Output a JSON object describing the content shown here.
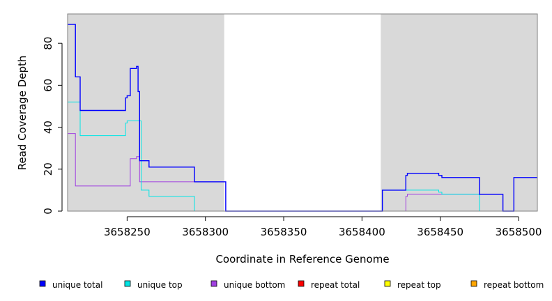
{
  "chart_data": {
    "type": "line",
    "step": true,
    "title": "",
    "xlabel": "Coordinate in Reference Genome",
    "ylabel": "Read Coverage Depth",
    "xlim": [
      3658212,
      3658512
    ],
    "ylim": [
      0,
      94
    ],
    "x_ticks": [
      3658250,
      3658300,
      3658350,
      3658400,
      3658450,
      3658500
    ],
    "x_tick_labels": [
      "3658250",
      "3658300",
      "3658350",
      "3658400",
      "3658450",
      "3658500"
    ],
    "y_ticks": [
      0,
      20,
      40,
      60,
      80
    ],
    "y_tick_labels": [
      "0",
      "20",
      "40",
      "60",
      "80"
    ],
    "grid": false,
    "legend_position": "bottom",
    "shaded_regions": [
      {
        "x_start": 3658212,
        "x_end": 3658312,
        "color": "#d9d9d9"
      },
      {
        "x_start": 3658412,
        "x_end": 3658512,
        "color": "#d9d9d9"
      }
    ],
    "series": [
      {
        "name": "unique total",
        "color": "#0000ff",
        "points": [
          [
            3658212,
            89
          ],
          [
            3658217,
            64
          ],
          [
            3658220,
            48
          ],
          [
            3658249,
            54
          ],
          [
            3658250,
            55
          ],
          [
            3658252,
            68
          ],
          [
            3658256,
            69
          ],
          [
            3658257,
            57
          ],
          [
            3658258,
            24
          ],
          [
            3658264,
            21
          ],
          [
            3658293,
            14
          ],
          [
            3658313,
            0
          ],
          [
            3658413,
            10
          ],
          [
            3658428,
            17
          ],
          [
            3658429,
            18
          ],
          [
            3658449,
            17
          ],
          [
            3658451,
            16
          ],
          [
            3658475,
            8
          ],
          [
            3658490,
            0
          ],
          [
            3658497,
            16
          ],
          [
            3658512,
            16
          ]
        ]
      },
      {
        "name": "unique top",
        "color": "#00e5e5",
        "points": [
          [
            3658212,
            52
          ],
          [
            3658220,
            36
          ],
          [
            3658249,
            42
          ],
          [
            3658250,
            43
          ],
          [
            3658259,
            10
          ],
          [
            3658264,
            7
          ],
          [
            3658293,
            0
          ],
          [
            3658413,
            10
          ],
          [
            3658430,
            10
          ],
          [
            3658449,
            9
          ],
          [
            3658451,
            8
          ],
          [
            3658475,
            0
          ],
          [
            3658512,
            0
          ]
        ]
      },
      {
        "name": "unique bottom",
        "color": "#a040e0",
        "points": [
          [
            3658212,
            37
          ],
          [
            3658217,
            12
          ],
          [
            3658252,
            25
          ],
          [
            3658256,
            26
          ],
          [
            3658258,
            14
          ],
          [
            3658293,
            14
          ],
          [
            3658313,
            0
          ],
          [
            3658428,
            7
          ],
          [
            3658429,
            8
          ],
          [
            3658475,
            8
          ],
          [
            3658490,
            0
          ],
          [
            3658512,
            0
          ]
        ]
      },
      {
        "name": "repeat total",
        "color": "#ff0000",
        "points": [
          [
            3658212,
            0
          ],
          [
            3658512,
            0
          ]
        ]
      },
      {
        "name": "repeat top",
        "color": "#ffff00",
        "points": [
          [
            3658212,
            0
          ],
          [
            3658512,
            0
          ]
        ]
      },
      {
        "name": "repeat bottom",
        "color": "#ffa500",
        "points": [
          [
            3658212,
            0
          ],
          [
            3658512,
            0
          ]
        ]
      }
    ]
  }
}
